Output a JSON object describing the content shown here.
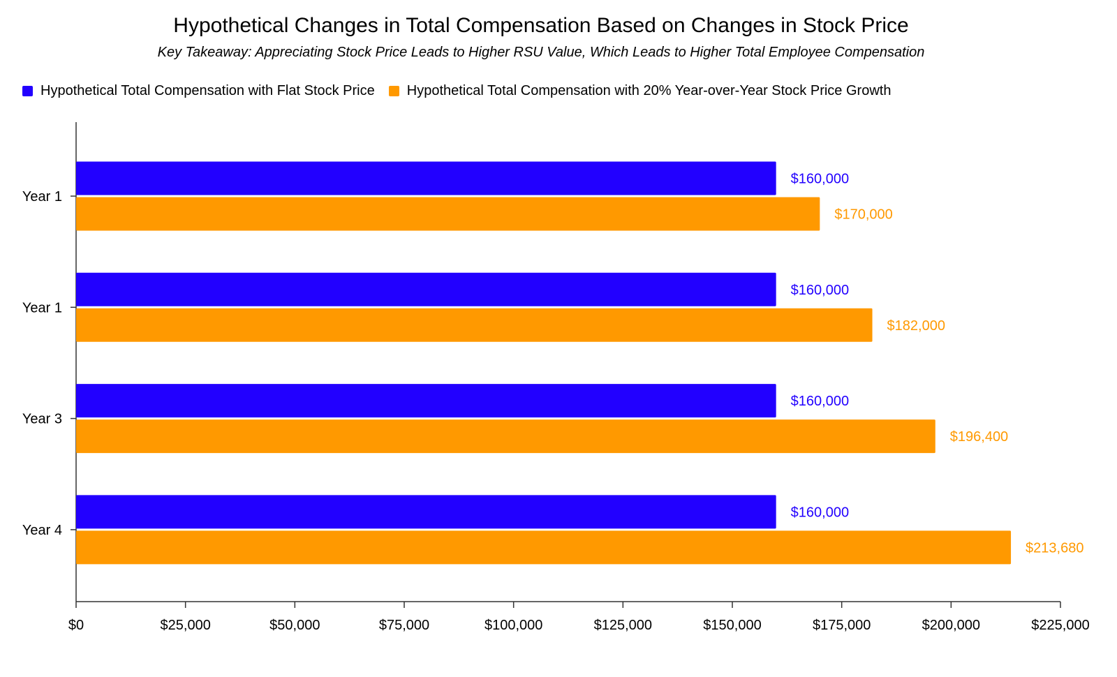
{
  "chart_data": {
    "type": "bar",
    "orientation": "horizontal",
    "title": "Hypothetical Changes in Total Compensation Based on Changes in Stock Price",
    "subtitle": "Key Takeaway: Appreciating Stock Price Leads to Higher RSU Value, Which Leads to Higher Total Employee Compensation",
    "categories": [
      "Year 1",
      "Year 1",
      "Year 3",
      "Year 4"
    ],
    "series": [
      {
        "name": "Hypothetical Total Compensation with Flat Stock Price",
        "color": "#2200ff",
        "values": [
          160000,
          160000,
          160000,
          160000
        ],
        "labels": [
          "$160,000",
          "$160,000",
          "$160,000",
          "$160,000"
        ]
      },
      {
        "name": "Hypothetical Total Compensation with 20% Year-over-Year Stock Price Growth",
        "color": "#ff9900",
        "values": [
          170000,
          182000,
          196400,
          213680
        ],
        "labels": [
          "$170,000",
          "$182,000",
          "$196,400",
          "$213,680"
        ]
      }
    ],
    "xlim": [
      0,
      225000
    ],
    "xticks": [
      0,
      25000,
      50000,
      75000,
      100000,
      125000,
      150000,
      175000,
      200000,
      225000
    ],
    "xtick_labels": [
      "$0",
      "$25,000",
      "$50,000",
      "$75,000",
      "$100,000",
      "$125,000",
      "$150,000",
      "$175,000",
      "$200,000",
      "$225,000"
    ],
    "xlabel": "",
    "ylabel": "",
    "legend_position": "top-left",
    "grid": false
  }
}
